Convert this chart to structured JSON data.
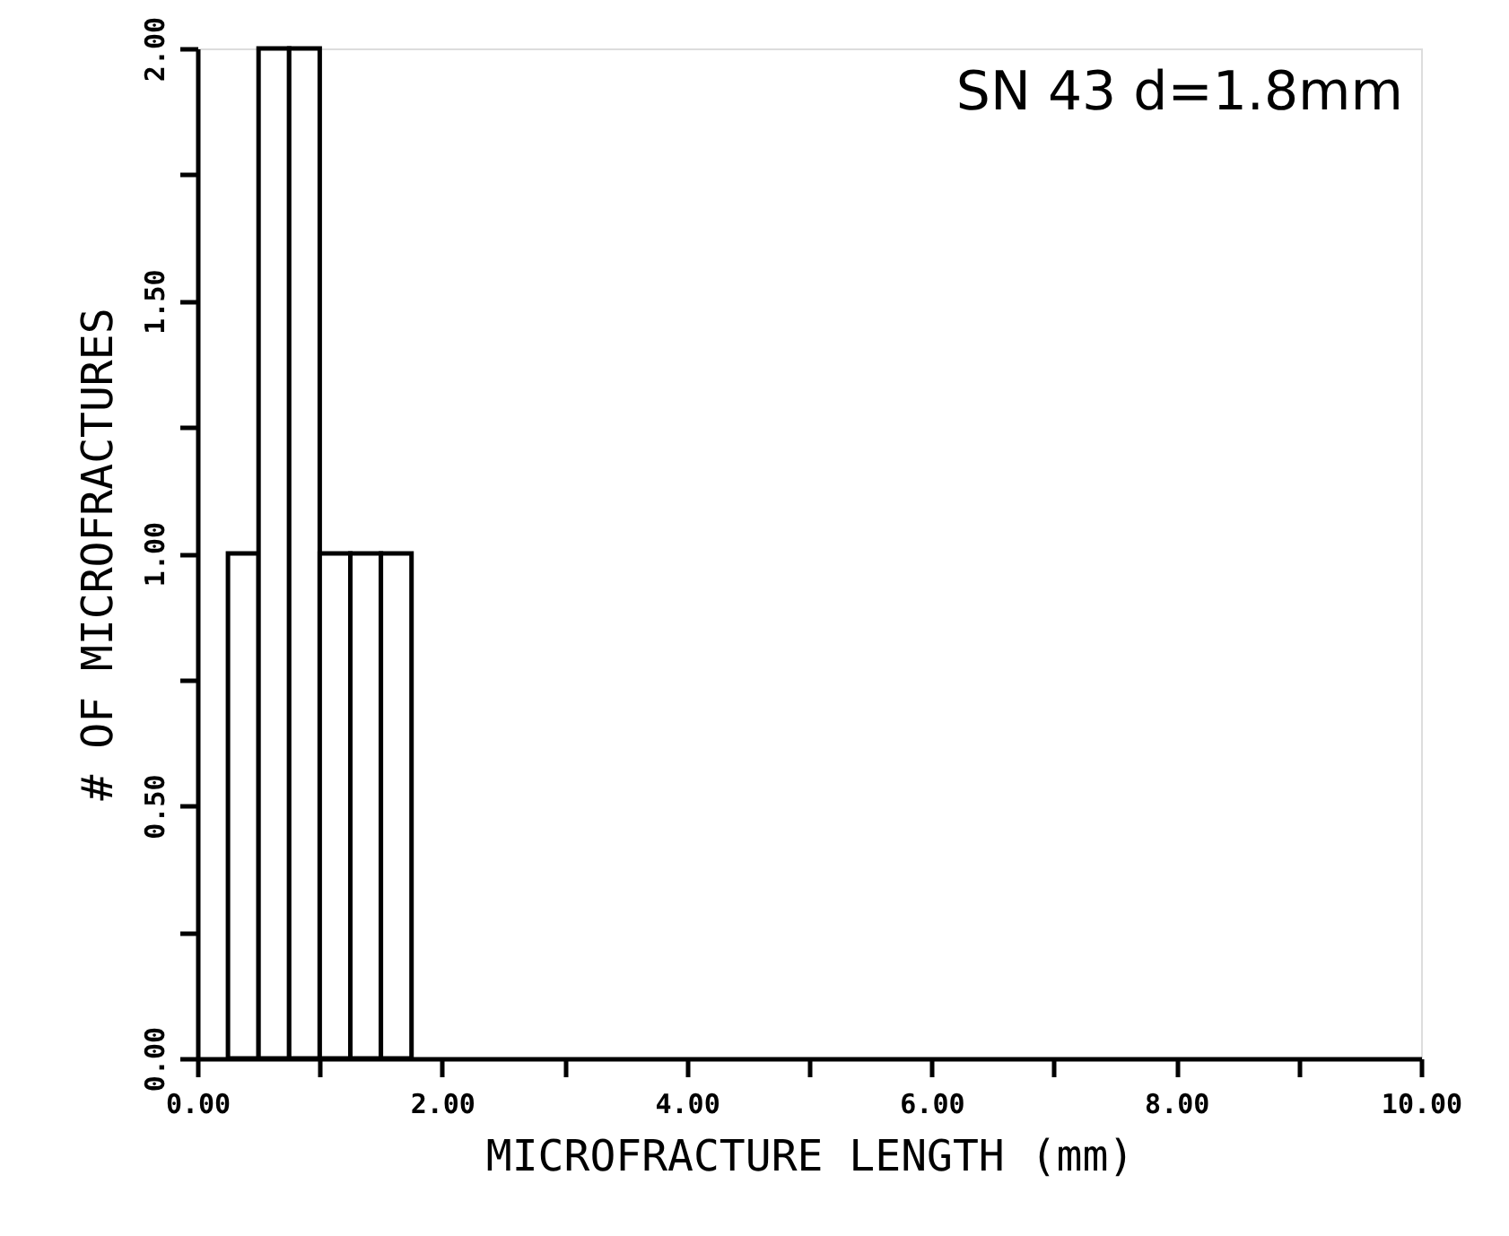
{
  "chart_data": {
    "type": "histogram",
    "title": "SN 43   d=1.8mm",
    "xlabel": "MICROFRACTURE LENGTH  (mm)",
    "ylabel": "# OF MICROFRACTURES",
    "bins": [
      0.25,
      0.5,
      0.75,
      1.0,
      1.25,
      1.5,
      1.75
    ],
    "values": [
      1,
      2,
      2,
      1,
      1,
      1
    ],
    "color": "#ffffff",
    "xlim": [
      0,
      10
    ],
    "xticks": [
      {
        "value": 0,
        "label": "0.00"
      },
      {
        "value": 1,
        "label": null
      },
      {
        "value": 2,
        "label": "2.00"
      },
      {
        "value": 3,
        "label": null
      },
      {
        "value": 4,
        "label": "4.00"
      },
      {
        "value": 5,
        "label": null
      },
      {
        "value": 6,
        "label": "6.00"
      },
      {
        "value": 7,
        "label": null
      },
      {
        "value": 8,
        "label": "8.00"
      },
      {
        "value": 9,
        "label": null
      },
      {
        "value": 10,
        "label": "10.00"
      }
    ],
    "ylim": [
      0,
      2
    ],
    "yticks": [
      {
        "value": 0,
        "label": "0.00"
      },
      {
        "value": 0.25,
        "label": null
      },
      {
        "value": 0.5,
        "label": "0.50"
      },
      {
        "value": 0.75,
        "label": null
      },
      {
        "value": 1.0,
        "label": "1.00"
      },
      {
        "value": 1.25,
        "label": null
      },
      {
        "value": 1.5,
        "label": "1.50"
      },
      {
        "value": 1.75,
        "label": null
      },
      {
        "value": 2.0,
        "label": "2.00"
      }
    ],
    "grid": false
  }
}
